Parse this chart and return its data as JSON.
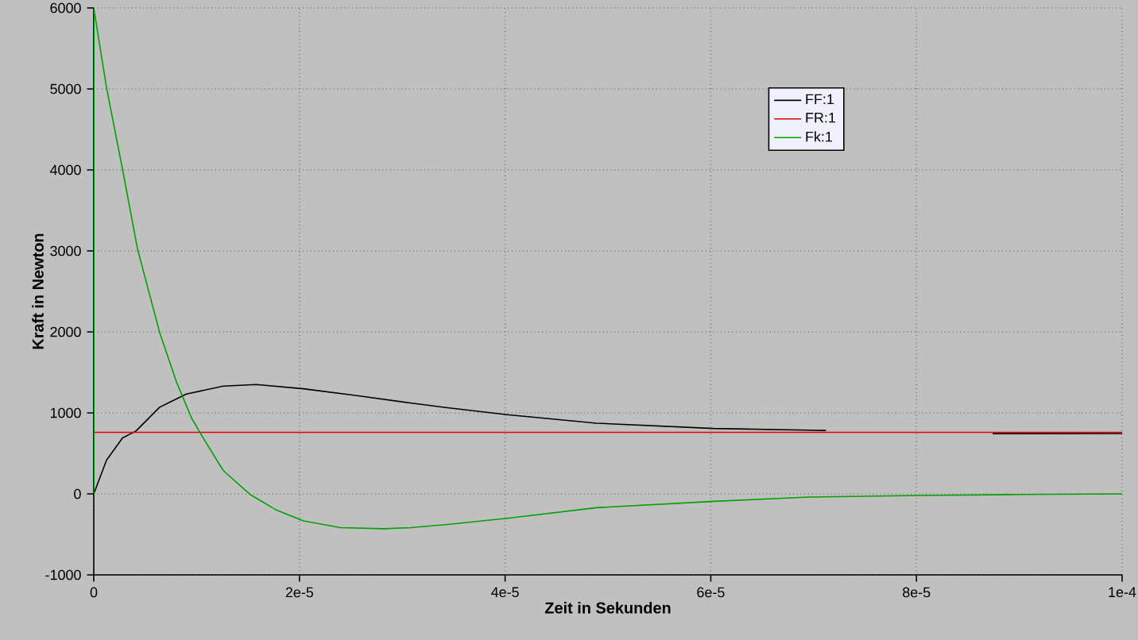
{
  "chart_data": {
    "type": "line",
    "xlabel": "Zeit in Sekunden",
    "ylabel": "Kraft in Newton",
    "xlim": [
      0,
      0.0001
    ],
    "ylim": [
      -1000,
      6000
    ],
    "xticks": [
      0,
      {
        "value": 2e-05,
        "label": "2e-5"
      },
      {
        "value": 4e-05,
        "label": "4e-5"
      },
      {
        "value": 6e-05,
        "label": "6e-5"
      },
      {
        "value": 8e-05,
        "label": "8e-5"
      },
      {
        "value": 0.0001,
        "label": "1e-4"
      }
    ],
    "yticks": [
      -1000,
      0,
      1000,
      2000,
      3000,
      4000,
      5000,
      6000
    ],
    "grid": true,
    "legend": "top right",
    "marker": "none",
    "line_style": "solid",
    "series": [
      {
        "name": "FF:1",
        "color": "#000000",
        "x": [
          0,
          1.24e-06,
          2.8e-06,
          4.1e-06,
          6.4e-06,
          9e-06,
          1.26e-05,
          1.58e-05,
          2.04e-05,
          2.56e-05,
          3.08e-05,
          3.44e-05,
          4.02e-05,
          4.89e-05,
          6.03e-05,
          7.12e-05,
          8e-05,
          8.74e-05,
          0.0001
        ],
        "values": [
          0,
          417,
          691,
          776,
          1070,
          1233,
          1331,
          1350,
          1298,
          1213,
          1122,
          1063,
          978,
          873,
          808,
          783,
          null,
          744,
          745
        ]
      },
      {
        "name": "FR:1",
        "color": "#e00000",
        "x": [
          0,
          0.0001
        ],
        "values": [
          760,
          760
        ]
      },
      {
        "name": "Fk:1",
        "color": "#00a000",
        "x": [
          0,
          0,
          1.24e-06,
          2.8e-06,
          4.25e-06,
          6.4e-06,
          8e-06,
          9.5e-06,
          1.07e-05,
          1.26e-05,
          1.52e-05,
          1.78e-05,
          2.04e-05,
          2.4e-05,
          2.82e-05,
          3.08e-05,
          3.44e-05,
          4.02e-05,
          4.89e-05,
          6.03e-05,
          6.96e-05,
          8e-05,
          8.98e-05,
          0.0001
        ],
        "values": [
          0,
          6000,
          5016,
          4005,
          3027,
          1996,
          1396,
          939,
          678,
          287,
          -7,
          -202,
          -333,
          -417,
          -430,
          -417,
          -378,
          -301,
          -170,
          -92,
          -39,
          -20,
          -8,
          0
        ]
      }
    ]
  }
}
